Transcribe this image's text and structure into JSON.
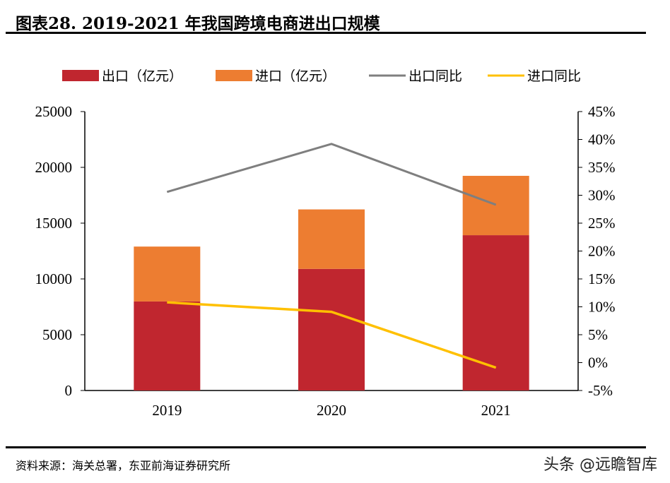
{
  "header": {
    "title": "图表28. 2019-2021 年我国跨境电商进出口规模"
  },
  "footer": {
    "source": "资料来源：海关总署，东亚前海证券研究所",
    "watermark": "头条 @远瞻智库"
  },
  "chart_data": {
    "type": "bar",
    "stacked": true,
    "title": "",
    "categories": [
      "2019",
      "2020",
      "2021"
    ],
    "series": [
      {
        "name": "出口（亿元）",
        "type": "bar",
        "axis": "left",
        "color": "#C0262F",
        "values": [
          7980,
          10900,
          13920
        ]
      },
      {
        "name": "进口（亿元）",
        "type": "bar",
        "axis": "left",
        "color": "#ED7D31",
        "values": [
          4920,
          5330,
          5320
        ]
      },
      {
        "name": "出口同比",
        "type": "line",
        "axis": "right",
        "color": "#7F7F7F",
        "values": [
          30.6,
          39.2,
          28.3
        ]
      },
      {
        "name": "进口同比",
        "type": "line",
        "axis": "right",
        "color": "#FFC000",
        "values": [
          10.8,
          9.1,
          -0.9
        ]
      }
    ],
    "y_left": {
      "range": [
        0,
        25000
      ],
      "ticks": [
        "0",
        "5000",
        "10000",
        "15000",
        "20000",
        "25000"
      ]
    },
    "y_right": {
      "range": [
        -5,
        45
      ],
      "unit": "%",
      "ticks": [
        "-5%",
        "0%",
        "5%",
        "10%",
        "15%",
        "20%",
        "25%",
        "30%",
        "35%",
        "40%",
        "45%"
      ]
    },
    "grid": false,
    "legend": "top"
  }
}
